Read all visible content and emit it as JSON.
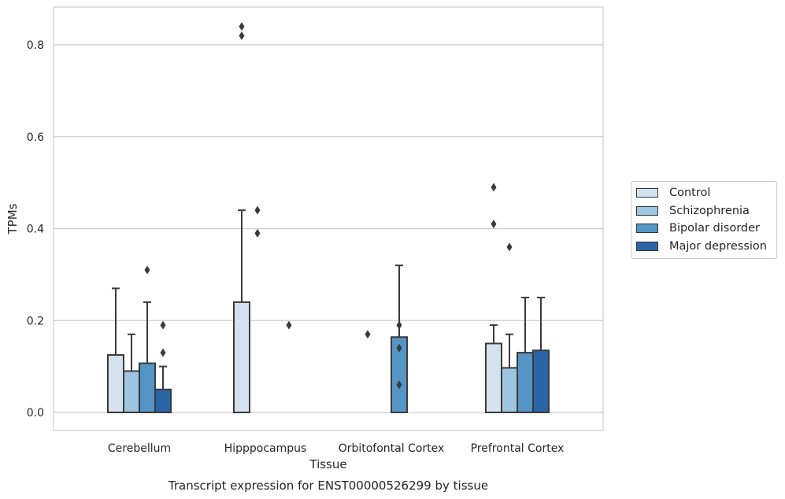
{
  "chart_data": {
    "type": "bar",
    "title": "Transcript expression for ENST00000526299 by tissue",
    "xlabel": "Tissue",
    "ylabel": "TPMs",
    "ylim": [
      -0.04,
      0.885
    ],
    "yticks": [
      "0.0",
      "0.2",
      "0.4",
      "0.6",
      "0.8"
    ],
    "ytick_values": [
      0.0,
      0.2,
      0.4,
      0.6,
      0.8
    ],
    "grid": true,
    "legend_position": "right",
    "categories": [
      "Cerebellum",
      "Hipppocampus",
      "Orbitofontal Cortex",
      "Prefrontal Cortex"
    ],
    "series": [
      {
        "name": "Control",
        "color": "#d4e2ef",
        "values": [
          0.125,
          0.24,
          0.0,
          0.15
        ],
        "whisker_high": [
          0.27,
          0.44,
          null,
          0.19
        ],
        "outliers": [
          [],
          [
            0.82,
            0.84
          ],
          [
            0.17
          ],
          [
            0.41,
            0.49
          ]
        ]
      },
      {
        "name": "Schizophrenia",
        "color": "#9dc5df",
        "values": [
          0.09,
          0.0,
          0.0,
          0.097
        ],
        "whisker_high": [
          0.17,
          null,
          null,
          0.17
        ],
        "outliers": [
          [],
          [
            0.39,
            0.44
          ],
          [],
          [
            0.36
          ]
        ]
      },
      {
        "name": "Bipolar disorder",
        "color": "#5595c6",
        "values": [
          0.107,
          0.0,
          0.164,
          0.13
        ],
        "whisker_high": [
          0.24,
          null,
          0.32,
          0.25
        ],
        "outliers": [
          [
            0.31
          ],
          [],
          [
            0.06,
            0.14,
            0.19
          ],
          []
        ]
      },
      {
        "name": "Major depression",
        "color": "#2a66a6",
        "values": [
          0.05,
          0.0,
          0.0,
          0.135
        ],
        "whisker_high": [
          0.1,
          null,
          null,
          0.25
        ],
        "outliers": [
          [
            0.13,
            0.19
          ],
          [
            0.19
          ],
          [],
          []
        ]
      }
    ]
  }
}
